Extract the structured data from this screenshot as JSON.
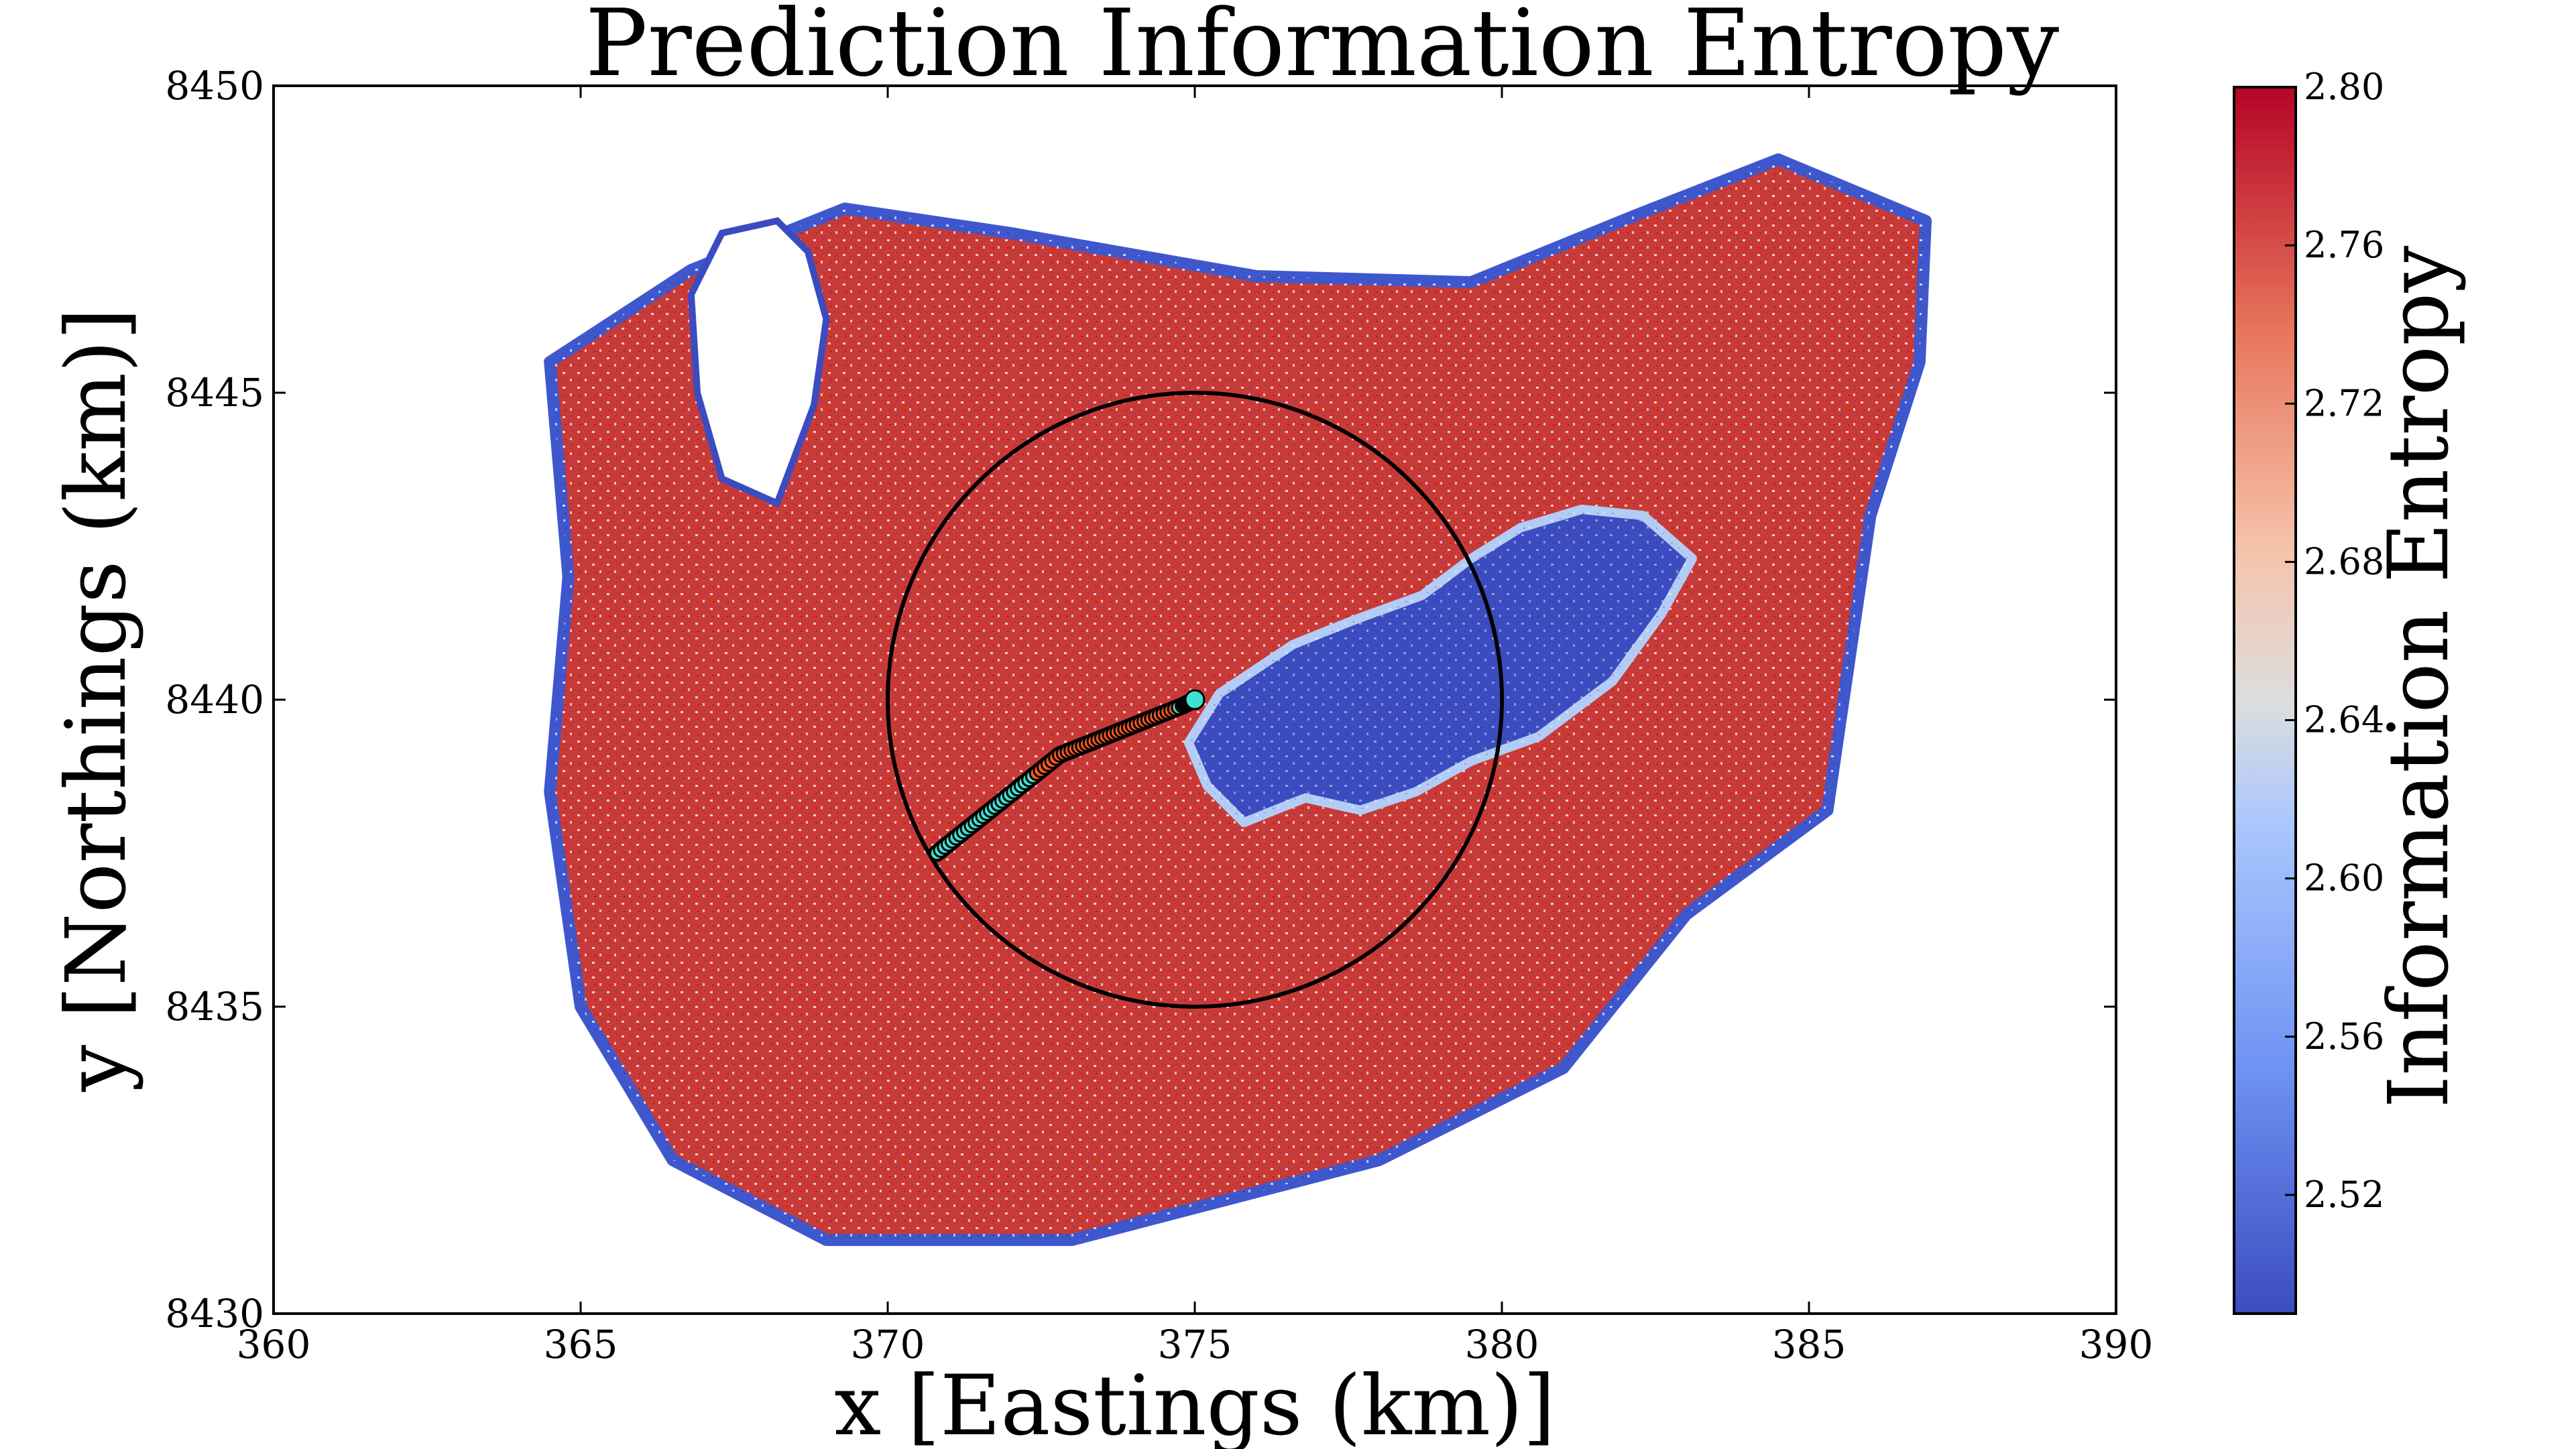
{
  "chart_data": {
    "type": "scatter",
    "title": "Prediction Information Entropy",
    "xlabel": "x [Eastings (km)]",
    "ylabel": "y [Northings (km)]",
    "xlim": [
      360,
      390
    ],
    "ylim": [
      8430,
      8450
    ],
    "xticks": [
      "360",
      "365",
      "370",
      "375",
      "380",
      "385",
      "390"
    ],
    "yticks": [
      "8430",
      "8435",
      "8440",
      "8445",
      "8450"
    ],
    "grid": false,
    "colormap": "coolwarm",
    "colorbar": {
      "label": "Information Entropy",
      "min": 2.49,
      "max": 2.8,
      "ticks": [
        "2.52",
        "2.56",
        "2.60",
        "2.64",
        "2.68",
        "2.72",
        "2.76",
        "2.80"
      ],
      "tick_values": [
        2.52,
        2.56,
        2.6,
        2.64,
        2.68,
        2.72,
        2.76,
        2.8
      ],
      "low_color": "#3b4cc0",
      "mid_color": "#dddddd",
      "high_color": "#b40426"
    },
    "circle": {
      "center": [
        375,
        8440
      ],
      "radius": 5,
      "color": "#000000"
    },
    "path": {
      "points": [
        [
          370.8,
          8437.5
        ],
        [
          371.3,
          8437.9
        ],
        [
          371.8,
          8438.3
        ],
        [
          372.3,
          8438.7
        ],
        [
          372.8,
          8439.1
        ],
        [
          373.3,
          8439.3
        ],
        [
          373.8,
          8439.5
        ],
        [
          374.3,
          8439.7
        ],
        [
          374.8,
          8439.9
        ],
        [
          375.0,
          8440.0
        ]
      ],
      "colors": [
        "#40e0d0",
        "#ff5a1e"
      ]
    },
    "regions": {
      "island_outline": [
        [
          364.5,
          8445.5
        ],
        [
          366.8,
          8447.0
        ],
        [
          369.3,
          8448.0
        ],
        [
          372.0,
          8447.6
        ],
        [
          376.0,
          8446.9
        ],
        [
          379.5,
          8446.8
        ],
        [
          382.2,
          8447.9
        ],
        [
          384.5,
          8448.8
        ],
        [
          386.9,
          8447.8
        ],
        [
          386.8,
          8445.5
        ],
        [
          386.0,
          8443.0
        ],
        [
          385.3,
          8438.2
        ],
        [
          383.0,
          8436.5
        ],
        [
          381.0,
          8434.0
        ],
        [
          378.0,
          8432.5
        ],
        [
          373.0,
          8431.2
        ],
        [
          369.0,
          8431.2
        ],
        [
          366.5,
          8432.5
        ],
        [
          365.0,
          8435.0
        ],
        [
          364.5,
          8438.5
        ],
        [
          364.8,
          8442.0
        ]
      ],
      "low_entropy_blob": [
        [
          378.7,
          8441.7
        ],
        [
          379.5,
          8442.3
        ],
        [
          380.3,
          8442.8
        ],
        [
          381.3,
          8443.1
        ],
        [
          382.3,
          8443.0
        ],
        [
          383.1,
          8442.3
        ],
        [
          382.6,
          8441.4
        ],
        [
          381.8,
          8440.3
        ],
        [
          380.6,
          8439.4
        ],
        [
          379.5,
          8439.0
        ],
        [
          378.6,
          8438.5
        ],
        [
          377.7,
          8438.2
        ],
        [
          376.8,
          8438.4
        ],
        [
          376.3,
          8438.2
        ],
        [
          375.8,
          8438.0
        ],
        [
          375.2,
          8438.6
        ],
        [
          374.9,
          8439.3
        ],
        [
          375.4,
          8440.1
        ],
        [
          376.6,
          8440.9
        ],
        [
          377.6,
          8441.3
        ]
      ],
      "empty_area": [
        [
          366.8,
          8446.6
        ],
        [
          367.3,
          8447.6
        ],
        [
          368.2,
          8447.8
        ],
        [
          368.7,
          8447.3
        ],
        [
          369.0,
          8446.2
        ],
        [
          368.8,
          8444.8
        ],
        [
          368.2,
          8443.2
        ],
        [
          367.3,
          8443.6
        ],
        [
          366.9,
          8445.0
        ]
      ]
    }
  }
}
